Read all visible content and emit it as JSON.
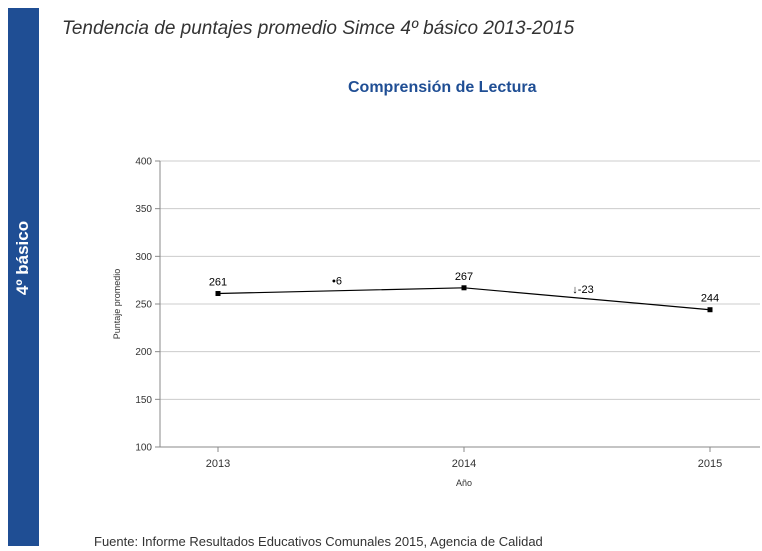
{
  "header": {
    "side_label": "4º básico",
    "title": "Tendencia de puntajes promedio Simce 4º básico 2013-2015"
  },
  "footer": {
    "text": "Fuente: Informe Resultados Educativos Comunales 2015, Agencia de Calidad"
  },
  "colors": {
    "band": "#1f4e94",
    "chart_title": "#1f4e94",
    "series_line": "#000000",
    "grid": "#cccccc"
  },
  "chart_data": {
    "type": "line",
    "title": "Comprensión de Lectura",
    "xlabel": "Año",
    "ylabel": "Puntaje promedio",
    "x": [
      "2013",
      "2014",
      "2015"
    ],
    "series": [
      {
        "values": [
          261,
          267,
          244
        ]
      }
    ],
    "data_labels": [
      "261",
      "267",
      "244"
    ],
    "change_annotations": [
      {
        "between": [
          "2013",
          "2014"
        ],
        "label": "•6"
      },
      {
        "between": [
          "2014",
          "2015"
        ],
        "label": "↓-23"
      }
    ],
    "ylim": [
      100,
      400
    ],
    "yticks": [
      100,
      150,
      200,
      250,
      300,
      350,
      400
    ],
    "grid": true,
    "legend": "none"
  }
}
